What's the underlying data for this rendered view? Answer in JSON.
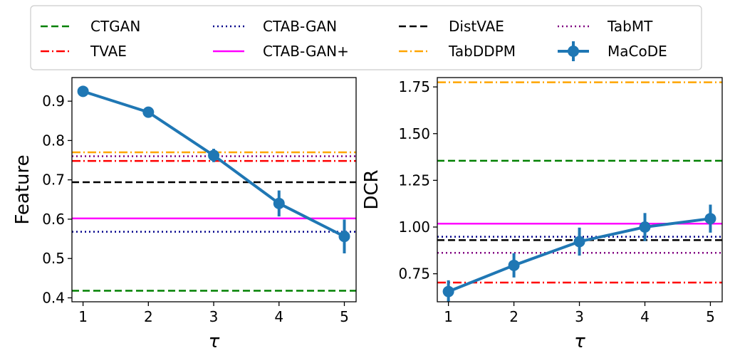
{
  "legend": [
    {
      "name": "CTGAN",
      "color": "#008000",
      "style": "dashed"
    },
    {
      "name": "CTAB-GAN",
      "color": "#00008b",
      "style": "dotted"
    },
    {
      "name": "DistVAE",
      "color": "#000000",
      "style": "dashed"
    },
    {
      "name": "TabMT",
      "color": "#800080",
      "style": "dotted"
    },
    {
      "name": "TVAE",
      "color": "#ff0000",
      "style": "dashdot"
    },
    {
      "name": "CTAB-GAN+",
      "color": "#ff00ff",
      "style": "solid"
    },
    {
      "name": "TabDDPM",
      "color": "#ffa500",
      "style": "dashdot"
    },
    {
      "name": "MaCoDE",
      "color": "#1f77b4",
      "style": "errorbar"
    }
  ],
  "chart_data": [
    {
      "type": "line",
      "xlabel": "τ",
      "ylabel": "Feature",
      "x": [
        1,
        2,
        3,
        4,
        5
      ],
      "xticks": [
        "1",
        "2",
        "3",
        "4",
        "5"
      ],
      "xlim": [
        0.83,
        5.18
      ],
      "ylim": [
        0.39,
        0.96
      ],
      "yticks": [
        "0.4",
        "0.5",
        "0.6",
        "0.7",
        "0.8",
        "0.9"
      ],
      "ytick_values": [
        0.4,
        0.5,
        0.6,
        0.7,
        0.8,
        0.9
      ],
      "baselines": [
        {
          "name": "CTGAN",
          "value": 0.418
        },
        {
          "name": "CTAB-GAN",
          "value": 0.568
        },
        {
          "name": "DistVAE",
          "value": 0.694
        },
        {
          "name": "TabMT",
          "value": 0.76
        },
        {
          "name": "TVAE",
          "value": 0.748
        },
        {
          "name": "CTAB-GAN+",
          "value": 0.602
        },
        {
          "name": "TabDDPM",
          "value": 0.77
        }
      ],
      "series": [
        {
          "name": "MaCoDE",
          "values": [
            0.925,
            0.872,
            0.762,
            0.64,
            0.556
          ],
          "errors": [
            0.006,
            0.006,
            0.017,
            0.033,
            0.043
          ]
        }
      ]
    },
    {
      "type": "line",
      "xlabel": "τ",
      "ylabel": "DCR",
      "x": [
        1,
        2,
        3,
        4,
        5
      ],
      "xticks": [
        "1",
        "2",
        "3",
        "4",
        "5"
      ],
      "xlim": [
        0.83,
        5.18
      ],
      "ylim": [
        0.6,
        1.8
      ],
      "yticks": [
        "0.75",
        "1.00",
        "1.25",
        "1.50",
        "1.75"
      ],
      "ytick_values": [
        0.75,
        1.0,
        1.25,
        1.5,
        1.75
      ],
      "baselines": [
        {
          "name": "CTGAN",
          "value": 1.355
        },
        {
          "name": "CTAB-GAN",
          "value": 0.948
        },
        {
          "name": "DistVAE",
          "value": 0.93
        },
        {
          "name": "TabMT",
          "value": 0.862
        },
        {
          "name": "TVAE",
          "value": 0.703
        },
        {
          "name": "CTAB-GAN+",
          "value": 1.018
        },
        {
          "name": "TabDDPM",
          "value": 1.775
        }
      ],
      "series": [
        {
          "name": "MaCoDE",
          "values": [
            0.655,
            0.795,
            0.922,
            1.0,
            1.045
          ],
          "errors": [
            0.06,
            0.065,
            0.075,
            0.075,
            0.075
          ]
        }
      ]
    }
  ]
}
